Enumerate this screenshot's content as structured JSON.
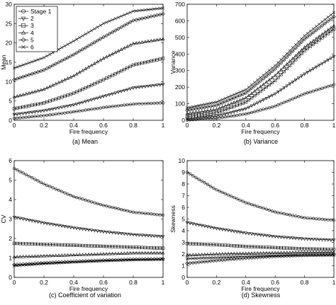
{
  "legend": {
    "items": [
      {
        "label": "Stage 1",
        "marker": "circle"
      },
      {
        "label": "2",
        "marker": "triangle-down"
      },
      {
        "label": "3",
        "marker": "square"
      },
      {
        "label": "4",
        "marker": "triangle-up"
      },
      {
        "label": "5",
        "marker": "diamond"
      },
      {
        "label": "6",
        "marker": "x"
      }
    ]
  },
  "chart_data": [
    {
      "type": "line",
      "caption": "(a)  Mean",
      "xlabel": "Fire frequency",
      "ylabel": "Mean",
      "xlim": [
        0,
        1
      ],
      "ylim": [
        0,
        30
      ],
      "xticks": [
        0,
        0.2,
        0.4,
        0.6,
        0.8,
        1
      ],
      "xtick_labels": [
        "0",
        "0.2",
        "0.4",
        "0.6",
        "0.8",
        "1"
      ],
      "yticks": [
        0,
        5,
        10,
        15,
        20,
        25,
        30
      ],
      "ytick_labels": [
        "0",
        "5",
        "10",
        "15",
        "20",
        "25",
        "30"
      ],
      "legend_position": "top-left",
      "x": [
        0,
        0.2,
        0.4,
        0.6,
        0.8,
        1.0
      ],
      "series": [
        {
          "name": "Stage 1",
          "marker": "circle",
          "values": [
            0.5,
            1.2,
            2.2,
            3.3,
            4.2,
            4.5
          ]
        },
        {
          "name": "2",
          "marker": "triangle-down",
          "values": [
            1.5,
            2.5,
            4.0,
            6.2,
            8.4,
            9.3
          ]
        },
        {
          "name": "3",
          "marker": "square",
          "values": [
            3.0,
            4.5,
            7.0,
            10.5,
            14.3,
            16.0
          ]
        },
        {
          "name": "4",
          "marker": "triangle-up",
          "values": [
            6.0,
            8.0,
            11.5,
            16.0,
            19.8,
            21.0
          ]
        },
        {
          "name": "5",
          "marker": "diamond",
          "values": [
            10.5,
            13.0,
            17.0,
            21.5,
            25.8,
            27.5
          ]
        },
        {
          "name": "6",
          "marker": "x",
          "values": [
            13.5,
            16.2,
            20.5,
            25.0,
            28.2,
            29.0
          ]
        }
      ]
    },
    {
      "type": "line",
      "caption": "(b)  Variance",
      "xlabel": "Fire frequency",
      "ylabel": "Variance",
      "xlim": [
        0,
        1
      ],
      "ylim": [
        0,
        700
      ],
      "xticks": [
        0,
        0.2,
        0.4,
        0.6,
        0.8,
        1
      ],
      "xtick_labels": [
        "0",
        "0.2",
        "0.4",
        "0.6",
        "0.8",
        "1"
      ],
      "yticks": [
        0,
        100,
        200,
        300,
        400,
        500,
        600,
        700
      ],
      "ytick_labels": [
        "0",
        "100",
        "200",
        "300",
        "400",
        "500",
        "600",
        "700"
      ],
      "x": [
        0,
        0.2,
        0.4,
        0.6,
        0.8,
        1.0
      ],
      "series": [
        {
          "name": "Stage 1",
          "marker": "circle",
          "values": [
            2,
            12,
            38,
            85,
            160,
            215
          ]
        },
        {
          "name": "2",
          "marker": "triangle-down",
          "values": [
            8,
            25,
            70,
            160,
            280,
            385
          ]
        },
        {
          "name": "3",
          "marker": "square",
          "values": [
            22,
            45,
            110,
            240,
            420,
            550
          ]
        },
        {
          "name": "4",
          "marker": "triangle-up",
          "values": [
            40,
            65,
            135,
            270,
            440,
            570
          ]
        },
        {
          "name": "5",
          "marker": "diamond",
          "values": [
            60,
            90,
            165,
            310,
            490,
            625
          ]
        },
        {
          "name": "6",
          "marker": "x",
          "values": [
            75,
            110,
            185,
            330,
            510,
            650
          ]
        }
      ]
    },
    {
      "type": "line",
      "caption": "(c)  Coefficient  of variation",
      "xlabel": "Fire frequency",
      "ylabel": "CV",
      "xlim": [
        0,
        1
      ],
      "ylim": [
        0,
        6
      ],
      "xticks": [
        0,
        0.2,
        0.4,
        0.6,
        0.8,
        1
      ],
      "xtick_labels": [
        "0",
        "0.2",
        "0.4",
        "0.6",
        "0.8",
        "1"
      ],
      "yticks": [
        0,
        1,
        2,
        3,
        4,
        5,
        6
      ],
      "ytick_labels": [
        "0",
        "1",
        "2",
        "3",
        "4",
        "5",
        "6"
      ],
      "x": [
        0,
        0.2,
        0.4,
        0.6,
        0.8,
        1.0
      ],
      "series": [
        {
          "name": "Stage 1",
          "marker": "circle",
          "values": [
            5.6,
            4.8,
            4.15,
            3.7,
            3.35,
            3.2
          ]
        },
        {
          "name": "2",
          "marker": "triangle-down",
          "values": [
            3.1,
            2.8,
            2.55,
            2.35,
            2.2,
            2.1
          ]
        },
        {
          "name": "3",
          "marker": "square",
          "values": [
            1.75,
            1.7,
            1.65,
            1.6,
            1.55,
            1.5
          ]
        },
        {
          "name": "4",
          "marker": "triangle-up",
          "values": [
            1.05,
            1.1,
            1.15,
            1.2,
            1.25,
            1.25
          ]
        },
        {
          "name": "5",
          "marker": "diamond",
          "values": [
            0.65,
            0.75,
            0.82,
            0.88,
            0.93,
            0.95
          ]
        },
        {
          "name": "6",
          "marker": "x",
          "values": [
            0.6,
            0.7,
            0.78,
            0.85,
            0.9,
            0.92
          ]
        }
      ]
    },
    {
      "type": "line",
      "caption": "(d)  Skewness",
      "xlabel": "Fire frequency",
      "ylabel": "Skewness",
      "xlim": [
        0,
        1
      ],
      "ylim": [
        0,
        10
      ],
      "xticks": [
        0,
        0.2,
        0.4,
        0.6,
        0.8,
        1
      ],
      "xtick_labels": [
        "0",
        "0.2",
        "0.4",
        "0.6",
        "0.8",
        "1"
      ],
      "yticks": [
        0,
        1,
        2,
        3,
        4,
        5,
        6,
        7,
        8,
        9,
        10
      ],
      "ytick_labels": [
        "0",
        "1",
        "2",
        "3",
        "4",
        "5",
        "6",
        "7",
        "8",
        "9",
        "10"
      ],
      "x": [
        0,
        0.2,
        0.4,
        0.6,
        0.8,
        1.0
      ],
      "series": [
        {
          "name": "Stage 1",
          "marker": "circle",
          "values": [
            9.0,
            7.5,
            6.4,
            5.6,
            5.1,
            4.9
          ]
        },
        {
          "name": "2",
          "marker": "triangle-down",
          "values": [
            4.7,
            4.2,
            3.8,
            3.5,
            3.3,
            3.2
          ]
        },
        {
          "name": "3",
          "marker": "square",
          "values": [
            2.9,
            2.8,
            2.65,
            2.55,
            2.45,
            2.4
          ]
        },
        {
          "name": "4",
          "marker": "triangle-up",
          "values": [
            1.9,
            2.0,
            2.05,
            2.1,
            2.15,
            2.15
          ]
        },
        {
          "name": "5",
          "marker": "diamond",
          "values": [
            1.2,
            1.45,
            1.65,
            1.8,
            1.9,
            1.95
          ]
        },
        {
          "name": "6",
          "marker": "x",
          "values": [
            1.6,
            1.7,
            1.8,
            1.85,
            1.9,
            1.9
          ]
        }
      ]
    }
  ]
}
